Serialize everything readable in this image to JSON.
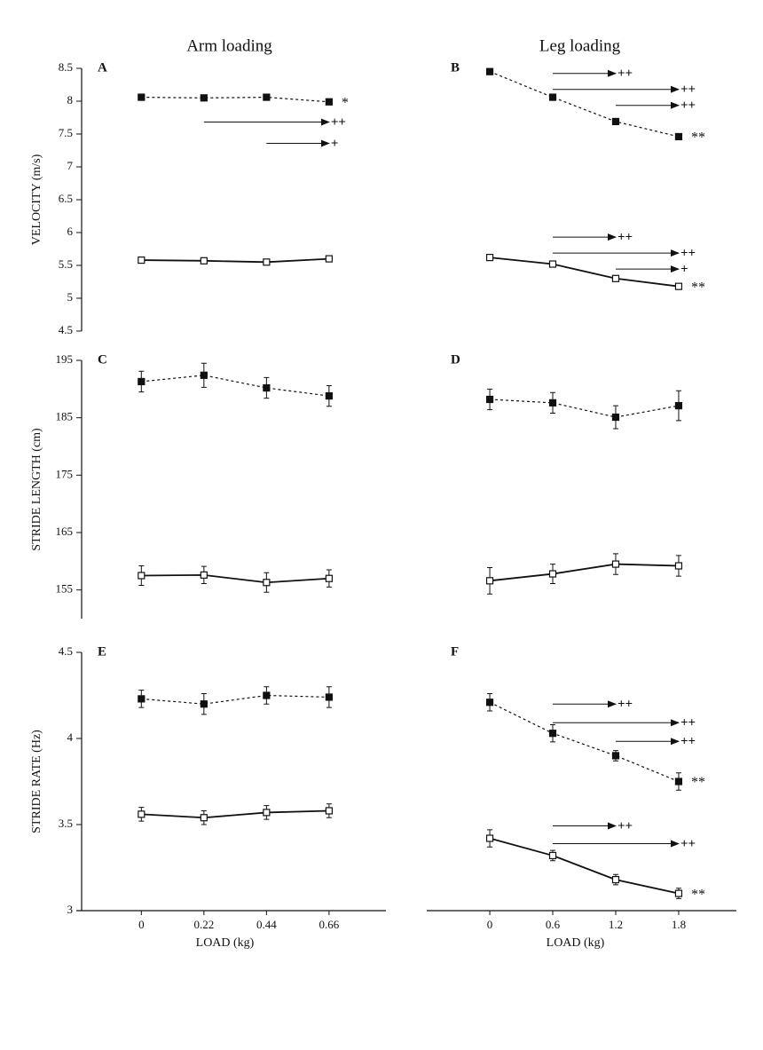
{
  "chart_data": [
    {
      "type": "line",
      "panel": "A",
      "title": "Arm loading",
      "ylabel": "VELOCITY (m/s)",
      "x": [
        0,
        0.22,
        0.44,
        0.66
      ],
      "xlim": [
        -0.21,
        0.86
      ],
      "ylim": [
        4.5,
        8.5
      ],
      "yticks": [
        4.5,
        5,
        5.5,
        6,
        6.5,
        7,
        7.5,
        8,
        8.5
      ],
      "spines": [
        "left"
      ],
      "series": [
        {
          "style": "dashed",
          "marker": "filled",
          "color": "#111",
          "values": [
            8.06,
            8.05,
            8.06,
            7.99
          ],
          "errors": [
            0.02,
            0.02,
            0.02,
            0.03
          ],
          "significance": "*",
          "comparisons": [
            {
              "from": 0.22,
              "to": 0.66,
              "label": "++"
            },
            {
              "from": 0.44,
              "to": 0.66,
              "label": "+"
            }
          ]
        },
        {
          "style": "solid",
          "marker": "open",
          "color": "#111",
          "values": [
            5.58,
            5.57,
            5.55,
            5.6
          ],
          "errors": [
            0.02,
            0.02,
            0.02,
            0.02
          ]
        }
      ]
    },
    {
      "type": "line",
      "panel": "B",
      "title": "Leg loading",
      "x": [
        0,
        0.6,
        1.2,
        1.8
      ],
      "xlim": [
        -0.55,
        2.35
      ],
      "ylim": [
        4.5,
        8.5
      ],
      "spines": [],
      "series": [
        {
          "style": "dashed",
          "marker": "filled",
          "color": "#111",
          "values": [
            8.45,
            8.06,
            7.69,
            7.46
          ],
          "errors": [
            0.03,
            0.03,
            0.03,
            0.03
          ],
          "significance": "**",
          "comparisons": [
            {
              "from": 0.6,
              "to": 1.2,
              "label": "++"
            },
            {
              "from": 0.6,
              "to": 1.8,
              "label": "++"
            },
            {
              "from": 1.2,
              "to": 1.8,
              "label": "++"
            }
          ]
        },
        {
          "style": "solid",
          "marker": "open",
          "color": "#111",
          "values": [
            5.62,
            5.52,
            5.3,
            5.18
          ],
          "errors": [
            0.02,
            0.02,
            0.02,
            0.02
          ],
          "significance": "**",
          "comparisons": [
            {
              "from": 0.6,
              "to": 1.2,
              "label": "++"
            },
            {
              "from": 0.6,
              "to": 1.8,
              "label": "++"
            },
            {
              "from": 1.2,
              "to": 1.8,
              "label": "+"
            }
          ]
        }
      ]
    },
    {
      "type": "line",
      "panel": "C",
      "ylabel": "STRIDE LENGTH (cm)",
      "x": [
        0,
        0.22,
        0.44,
        0.66
      ],
      "xlim": [
        -0.21,
        0.86
      ],
      "ylim": [
        150,
        195
      ],
      "yticks": [
        155,
        165,
        175,
        185,
        195
      ],
      "spines": [
        "left"
      ],
      "series": [
        {
          "style": "dashed",
          "marker": "filled",
          "color": "#111",
          "values": [
            191.3,
            192.4,
            190.2,
            188.8
          ],
          "errors": [
            1.8,
            2.1,
            1.8,
            1.8
          ]
        },
        {
          "style": "solid",
          "marker": "open",
          "color": "#111",
          "values": [
            157.5,
            157.6,
            156.3,
            157.0
          ],
          "errors": [
            1.7,
            1.5,
            1.7,
            1.5
          ]
        }
      ]
    },
    {
      "type": "line",
      "panel": "D",
      "x": [
        0,
        0.6,
        1.2,
        1.8
      ],
      "xlim": [
        -0.55,
        2.35
      ],
      "ylim": [
        150,
        195
      ],
      "spines": [],
      "series": [
        {
          "style": "dashed",
          "marker": "filled",
          "color": "#111",
          "values": [
            188.2,
            187.6,
            185.1,
            187.1
          ],
          "errors": [
            1.8,
            1.8,
            2.0,
            2.6
          ]
        },
        {
          "style": "solid",
          "marker": "open",
          "color": "#111",
          "values": [
            156.6,
            157.8,
            159.5,
            159.2
          ],
          "errors": [
            2.3,
            1.7,
            1.8,
            1.8
          ]
        }
      ]
    },
    {
      "type": "line",
      "panel": "E",
      "xlabel": "LOAD (kg)",
      "ylabel": "STRIDE RATE (Hz)",
      "x": [
        0,
        0.22,
        0.44,
        0.66
      ],
      "xlim": [
        -0.21,
        0.86
      ],
      "ylim": [
        3,
        4.5
      ],
      "xticks": [
        0,
        0.22,
        0.44,
        0.66
      ],
      "yticks": [
        3,
        3.5,
        4,
        4.5
      ],
      "spines": [
        "left",
        "bottom"
      ],
      "series": [
        {
          "style": "dashed",
          "marker": "filled",
          "color": "#111",
          "values": [
            4.23,
            4.2,
            4.25,
            4.24
          ],
          "errors": [
            0.05,
            0.06,
            0.05,
            0.06
          ]
        },
        {
          "style": "solid",
          "marker": "open",
          "color": "#111",
          "values": [
            3.56,
            3.54,
            3.57,
            3.58
          ],
          "errors": [
            0.04,
            0.04,
            0.04,
            0.04
          ]
        }
      ]
    },
    {
      "type": "line",
      "panel": "F",
      "xlabel": "LOAD (kg)",
      "x": [
        0,
        0.6,
        1.2,
        1.8
      ],
      "xlim": [
        -0.55,
        2.35
      ],
      "ylim": [
        3,
        4.5
      ],
      "xticks": [
        0,
        0.6,
        1.2,
        1.8
      ],
      "spines": [
        "bottom"
      ],
      "series": [
        {
          "style": "dashed",
          "marker": "filled",
          "color": "#111",
          "values": [
            4.21,
            4.03,
            3.9,
            3.75
          ],
          "errors": [
            0.05,
            0.05,
            0.03,
            0.05
          ],
          "significance": "**",
          "comparisons": [
            {
              "from": 0.6,
              "to": 1.2,
              "label": "++"
            },
            {
              "from": 0.6,
              "to": 1.8,
              "label": "++"
            },
            {
              "from": 1.2,
              "to": 1.8,
              "label": "++"
            }
          ]
        },
        {
          "style": "solid",
          "marker": "open",
          "color": "#111",
          "values": [
            3.42,
            3.32,
            3.18,
            3.1
          ],
          "errors": [
            0.05,
            0.03,
            0.03,
            0.03
          ],
          "significance": "**",
          "comparisons": [
            {
              "from": 0.6,
              "to": 1.2,
              "label": "++"
            },
            {
              "from": 0.6,
              "to": 1.8,
              "label": "++"
            }
          ]
        }
      ]
    }
  ]
}
